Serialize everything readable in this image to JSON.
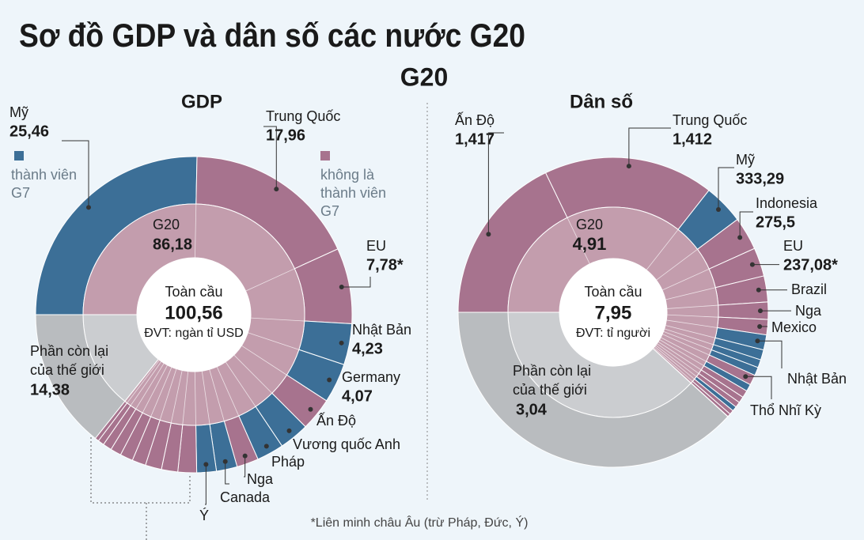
{
  "title": "Sơ đồ GDP và dân số các nước G20",
  "subtitle": "G20",
  "footnote": "*Liên minh châu Âu (trừ Pháp, Đức, Ý)",
  "colors": {
    "g7": "#3c6f97",
    "non_g7": "#a7738e",
    "rest": "#b9bcbf",
    "g20_inner": "#c39dad",
    "rest_inner": "#cbcdd0"
  },
  "legend": [
    {
      "label": [
        "thành viên",
        "G7"
      ],
      "g7": true
    },
    {
      "label": [
        "không là",
        "thành viên",
        "G7"
      ],
      "g7": false
    }
  ],
  "chart_data": [
    {
      "type": "sunburst",
      "title": "GDP",
      "total": {
        "label": "Toàn cầu",
        "value": 100.56,
        "value_label": "100,56",
        "unit": "ĐVT: ngàn tỉ USD"
      },
      "groups": {
        "categories": [
          [
            "G20"
          ],
          [
            "Phần còn lại",
            "của thế giới"
          ]
        ],
        "values": [
          86.18,
          14.38
        ],
        "value_labels": [
          "86,18",
          "14,38"
        ]
      },
      "categories": [
        "Mỹ",
        "Trung Quốc",
        "EU",
        "Nhật Bản",
        "Germany",
        "Ấn Độ",
        "Vương quốc Anh",
        "Pháp",
        "Nga",
        "Canada",
        "Ý",
        null,
        null,
        null,
        null,
        null,
        null,
        null,
        null,
        null
      ],
      "values": [
        25.46,
        17.96,
        7.78,
        4.23,
        4.07,
        3.39,
        3.07,
        2.78,
        2.24,
        2.14,
        2.01,
        1.92,
        1.68,
        1.67,
        1.41,
        1.32,
        1.11,
        0.91,
        0.63,
        0.4
      ],
      "value_labels": [
        "25,46",
        "17,96",
        "7,78*",
        "4,23",
        "4,07",
        null,
        null,
        null,
        null,
        null,
        null,
        null,
        null,
        null,
        null,
        null,
        null,
        null,
        null,
        null
      ],
      "g7": [
        true,
        false,
        false,
        true,
        true,
        false,
        true,
        true,
        false,
        true,
        true,
        false,
        false,
        false,
        false,
        false,
        false,
        false,
        false,
        false
      ]
    },
    {
      "type": "sunburst",
      "title": "Dân số",
      "total": {
        "label": "Toàn cầu",
        "value": 7.95,
        "value_label": "7,95",
        "unit": "ĐVT: tỉ người"
      },
      "groups": {
        "categories": [
          [
            "G20"
          ],
          [
            "Phần còn lại",
            "của thế giới"
          ]
        ],
        "values": [
          4.91,
          3.04
        ],
        "value_labels": [
          "4,91",
          "3,04"
        ]
      },
      "categories": [
        "Ấn Độ",
        "Trung Quốc",
        "Mỹ",
        "Indonesia",
        "EU",
        "Brazil",
        "Nga",
        "Mexico",
        "Nhật Bản",
        null,
        null,
        null,
        "Thổ Nhĩ Kỳ",
        null,
        null,
        null,
        null,
        null,
        null,
        null
      ],
      "values": [
        1.417,
        1.412,
        0.33329,
        0.2755,
        0.23708,
        0.215,
        0.144,
        0.127,
        0.125,
        0.084,
        0.067,
        0.068,
        0.085,
        0.059,
        0.06,
        0.052,
        0.046,
        0.039,
        0.036,
        0.026
      ],
      "value_labels": [
        "1,417",
        "1,412",
        "333,29",
        "275,5",
        "237,08*",
        null,
        null,
        null,
        null,
        null,
        null,
        null,
        null,
        null,
        null,
        null,
        null,
        null,
        null,
        null
      ],
      "g7": [
        false,
        false,
        true,
        false,
        false,
        false,
        false,
        false,
        true,
        true,
        true,
        true,
        false,
        true,
        false,
        false,
        false,
        true,
        false,
        false
      ]
    }
  ]
}
